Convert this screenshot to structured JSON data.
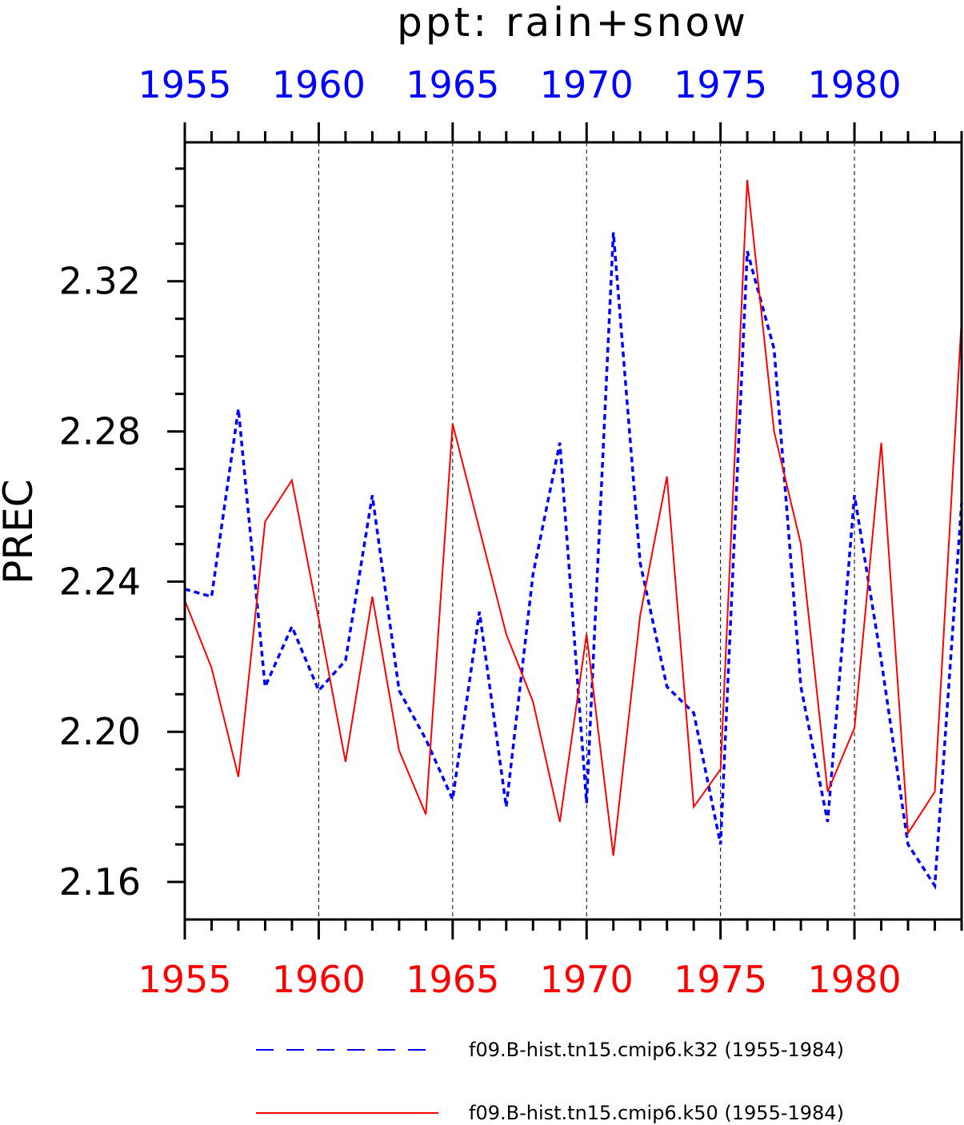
{
  "chart_data": {
    "type": "line",
    "title": "ppt: rain+snow",
    "ylabel": "PREC",
    "xlabel": "",
    "xlim": [
      1955,
      1984
    ],
    "ylim": [
      2.15,
      2.357
    ],
    "grid": "vertical dashed lines at 5-year ticks",
    "x_ticks": [
      "1955",
      "1960",
      "1965",
      "1970",
      "1975",
      "1980"
    ],
    "y_ticks": [
      "2.16",
      "2.20",
      "2.24",
      "2.28",
      "2.32"
    ],
    "top_axis_color": "#0000ff",
    "bottom_axis_color": "#ff0000",
    "x": [
      1955,
      1956,
      1957,
      1958,
      1959,
      1960,
      1961,
      1962,
      1963,
      1964,
      1965,
      1966,
      1967,
      1968,
      1969,
      1970,
      1971,
      1972,
      1973,
      1974,
      1975,
      1976,
      1977,
      1978,
      1979,
      1980,
      1981,
      1982,
      1983,
      1984
    ],
    "series": [
      {
        "name": "f09.B-hist.tn15.cmip6.k32 (1955-1984)",
        "color": "#0000ff",
        "style": "dashed",
        "values": [
          2.238,
          2.236,
          2.286,
          2.212,
          2.228,
          2.211,
          2.219,
          2.263,
          2.211,
          2.198,
          2.182,
          2.232,
          2.18,
          2.242,
          2.277,
          2.181,
          2.333,
          2.245,
          2.212,
          2.205,
          2.17,
          2.328,
          2.302,
          2.212,
          2.176,
          2.263,
          2.219,
          2.17,
          2.159,
          2.261
        ]
      },
      {
        "name": "f09.B-hist.tn15.cmip6.k50 (1955-1984)",
        "color": "#ff0000",
        "style": "solid",
        "values": [
          2.235,
          2.217,
          2.188,
          2.256,
          2.267,
          2.23,
          2.192,
          2.236,
          2.195,
          2.178,
          2.282,
          2.254,
          2.226,
          2.208,
          2.176,
          2.226,
          2.167,
          2.231,
          2.268,
          2.18,
          2.19,
          2.347,
          2.28,
          2.25,
          2.184,
          2.201,
          2.277,
          2.173,
          2.184,
          2.31
        ]
      }
    ]
  }
}
